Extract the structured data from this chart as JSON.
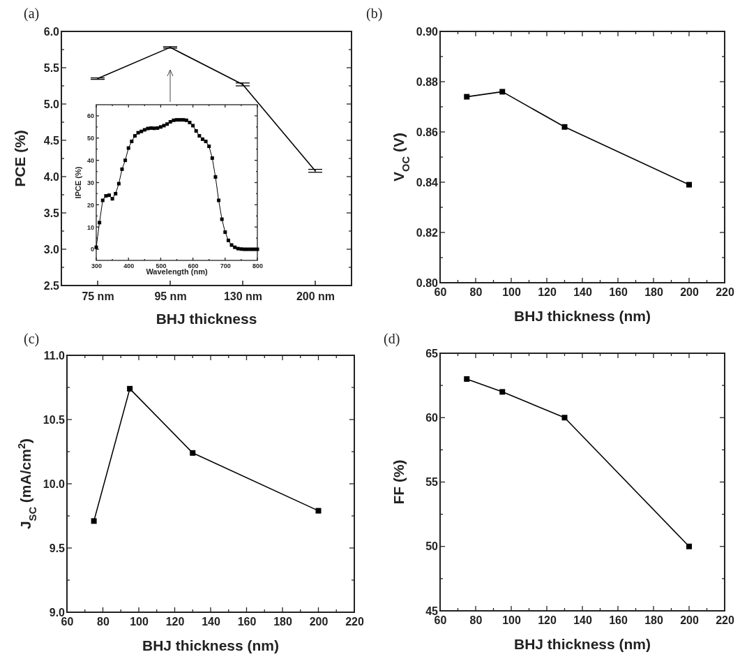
{
  "chart_data": [
    {
      "type": "line",
      "xlabel": "BHJ thickness",
      "ylabel": "PCE (%)",
      "annotations": [
        "(a)"
      ],
      "categories": [
        "75 nm",
        "95 nm",
        "130 nm",
        "200 nm"
      ],
      "marker": "none",
      "line_style": "solid",
      "series": [
        {
          "color": "#000000",
          "values": [
            5.35,
            5.78,
            5.27,
            4.08
          ],
          "errors": [
            0.01,
            0.01,
            0.02,
            0.02
          ]
        }
      ],
      "ylim": [
        2.5,
        6.0
      ],
      "yticks": [
        {
          "value": 2.5,
          "label": "2.5"
        },
        {
          "value": 2.75,
          "label": null
        },
        {
          "value": 3,
          "label": "3.0"
        },
        {
          "value": 3.25,
          "label": null
        },
        {
          "value": 3.5,
          "label": "3.5"
        },
        {
          "value": 3.75,
          "label": null
        },
        {
          "value": 4,
          "label": "4.0"
        },
        {
          "value": 4.25,
          "label": null
        },
        {
          "value": 4.5,
          "label": "4.5"
        },
        {
          "value": 4.75,
          "label": null
        },
        {
          "value": 5,
          "label": "5.0"
        },
        {
          "value": 5.25,
          "label": null
        },
        {
          "value": 5.5,
          "label": "5.5"
        },
        {
          "value": 5.75,
          "label": null
        },
        {
          "value": 6,
          "label": "6.0"
        }
      ],
      "grid": false
    },
    {
      "type": "line",
      "xlabel": "Wavelength (nm)",
      "ylabel": "IPCE (%)",
      "marker": "square",
      "line_style": "solid",
      "x": [
        300,
        310,
        320,
        330,
        340,
        350,
        360,
        370,
        380,
        390,
        400,
        410,
        420,
        430,
        440,
        450,
        460,
        470,
        480,
        490,
        500,
        510,
        520,
        530,
        540,
        550,
        560,
        570,
        580,
        590,
        600,
        610,
        620,
        630,
        640,
        650,
        660,
        670,
        680,
        690,
        700,
        710,
        720,
        730,
        740,
        750,
        760,
        770,
        780,
        790,
        800
      ],
      "series": [
        {
          "color": "#000000",
          "values": [
            0.9,
            12,
            22,
            24,
            24.3,
            22.7,
            25,
            29.5,
            36,
            40,
            45.5,
            48.5,
            51,
            52.4,
            53,
            53.7,
            54.3,
            54.5,
            54.4,
            54.5,
            55,
            55.6,
            56.3,
            57.3,
            58,
            58.2,
            58.2,
            58.2,
            58,
            57,
            55.6,
            53.2,
            51,
            49.5,
            48.5,
            46.3,
            41,
            32.5,
            22,
            13.5,
            7.7,
            4,
            1.9,
            0.9,
            0.3,
            0.1,
            0,
            0,
            0,
            0,
            0
          ]
        }
      ],
      "xlim": [
        300,
        800
      ],
      "xticks": [
        300,
        {
          "value": 350,
          "label": null
        },
        400,
        {
          "value": 450,
          "label": null
        },
        500,
        {
          "value": 550,
          "label": null
        },
        600,
        {
          "value": 650,
          "label": null
        },
        700,
        {
          "value": 750,
          "label": null
        },
        800
      ],
      "ylim": [
        -5,
        65
      ],
      "yticks": [
        0,
        {
          "value": 5,
          "label": null
        },
        10,
        {
          "value": 15,
          "label": null
        },
        20,
        {
          "value": 25,
          "label": null
        },
        30,
        {
          "value": 35,
          "label": null
        },
        40,
        {
          "value": 45,
          "label": null
        },
        50,
        {
          "value": 55,
          "label": null
        },
        60
      ],
      "grid": false
    },
    {
      "type": "line",
      "xlabel": "BHJ thickness (nm)",
      "ylabel": "V$_{OC}$ (V)",
      "annotations": [
        "(b)"
      ],
      "x": [
        75,
        95,
        130,
        200
      ],
      "marker": "square",
      "line_style": "solid",
      "series": [
        {
          "color": "#000000",
          "values": [
            0.874,
            0.876,
            0.862,
            0.839
          ]
        }
      ],
      "xlim": [
        60,
        220
      ],
      "xticks": [
        60,
        {
          "value": 70,
          "label": null
        },
        80,
        {
          "value": 90,
          "label": null
        },
        100,
        {
          "value": 110,
          "label": null
        },
        120,
        {
          "value": 130,
          "label": null
        },
        140,
        {
          "value": 150,
          "label": null
        },
        160,
        {
          "value": 170,
          "label": null
        },
        180,
        {
          "value": 190,
          "label": null
        },
        200,
        {
          "value": 210,
          "label": null
        },
        220
      ],
      "ylim": [
        0.8,
        0.9
      ],
      "yticks": [
        {
          "value": 0.8,
          "label": "0.80"
        },
        {
          "value": 0.81,
          "label": null
        },
        {
          "value": 0.82,
          "label": "0.82"
        },
        {
          "value": 0.83,
          "label": null
        },
        {
          "value": 0.84,
          "label": "0.84"
        },
        {
          "value": 0.85,
          "label": null
        },
        {
          "value": 0.86,
          "label": "0.86"
        },
        {
          "value": 0.87,
          "label": null
        },
        {
          "value": 0.88,
          "label": "0.88"
        },
        {
          "value": 0.89,
          "label": null
        },
        {
          "value": 0.9,
          "label": "0.90"
        }
      ],
      "grid": false
    },
    {
      "type": "line",
      "xlabel": "BHJ thickness (nm)",
      "ylabel": "J$_{SC}$ (mA/cm$^{2}$)",
      "annotations": [
        "(c)"
      ],
      "x": [
        75,
        95,
        130,
        200
      ],
      "marker": "square",
      "line_style": "solid",
      "series": [
        {
          "color": "#000000",
          "values": [
            9.71,
            10.74,
            10.24,
            9.79
          ]
        }
      ],
      "xlim": [
        60,
        220
      ],
      "xticks": [
        60,
        {
          "value": 70,
          "label": null
        },
        80,
        {
          "value": 90,
          "label": null
        },
        100,
        {
          "value": 110,
          "label": null
        },
        120,
        {
          "value": 130,
          "label": null
        },
        140,
        {
          "value": 150,
          "label": null
        },
        160,
        {
          "value": 170,
          "label": null
        },
        180,
        {
          "value": 190,
          "label": null
        },
        200,
        {
          "value": 210,
          "label": null
        },
        220
      ],
      "ylim": [
        9,
        11
      ],
      "yticks": [
        {
          "value": 9,
          "label": "9.0"
        },
        {
          "value": 9.25,
          "label": null
        },
        {
          "value": 9.5,
          "label": "9.5"
        },
        {
          "value": 9.75,
          "label": null
        },
        {
          "value": 10,
          "label": "10.0"
        },
        {
          "value": 10.25,
          "label": null
        },
        {
          "value": 10.5,
          "label": "10.5"
        },
        {
          "value": 10.75,
          "label": null
        },
        {
          "value": 11,
          "label": "11.0"
        }
      ],
      "grid": false
    },
    {
      "type": "line",
      "xlabel": "BHJ thickness (nm)",
      "ylabel": "FF (%)",
      "annotations": [
        "(d)"
      ],
      "x": [
        75,
        95,
        130,
        200
      ],
      "marker": "square",
      "line_style": "solid",
      "series": [
        {
          "color": "#000000",
          "values": [
            63,
            62,
            60,
            50
          ]
        }
      ],
      "xlim": [
        60,
        220
      ],
      "xticks": [
        60,
        {
          "value": 70,
          "label": null
        },
        80,
        {
          "value": 90,
          "label": null
        },
        100,
        {
          "value": 110,
          "label": null
        },
        120,
        {
          "value": 130,
          "label": null
        },
        140,
        {
          "value": 150,
          "label": null
        },
        160,
        {
          "value": 170,
          "label": null
        },
        180,
        {
          "value": 190,
          "label": null
        },
        200,
        {
          "value": 210,
          "label": null
        },
        220
      ],
      "ylim": [
        45,
        65
      ],
      "yticks": [
        45,
        {
          "value": 47.5,
          "label": null
        },
        50,
        {
          "value": 52.5,
          "label": null
        },
        55,
        {
          "value": 57.5,
          "label": null
        },
        60,
        {
          "value": 62.5,
          "label": null
        },
        65
      ],
      "grid": false
    }
  ]
}
